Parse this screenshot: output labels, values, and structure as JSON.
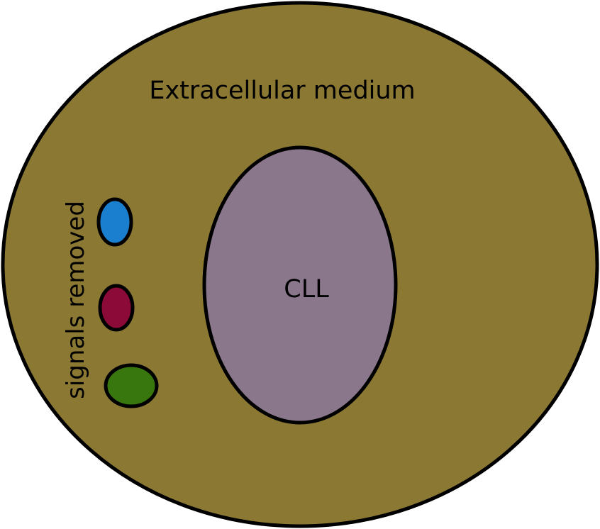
{
  "labels": {
    "outer": "Extracellular medium",
    "inner": "CLL",
    "side": "signals removed"
  },
  "colors": {
    "outer_fill": "#8b7833",
    "inner_fill": "#8b778c",
    "stroke": "#000000",
    "signal_blue": "#1b7fcf",
    "signal_red": "#8c0a37",
    "signal_green": "#38760e"
  },
  "signals": [
    {
      "name": "blue-signal",
      "color": "#1b7fcf"
    },
    {
      "name": "red-signal",
      "color": "#8c0a37"
    },
    {
      "name": "green-signal",
      "color": "#38760e"
    }
  ]
}
